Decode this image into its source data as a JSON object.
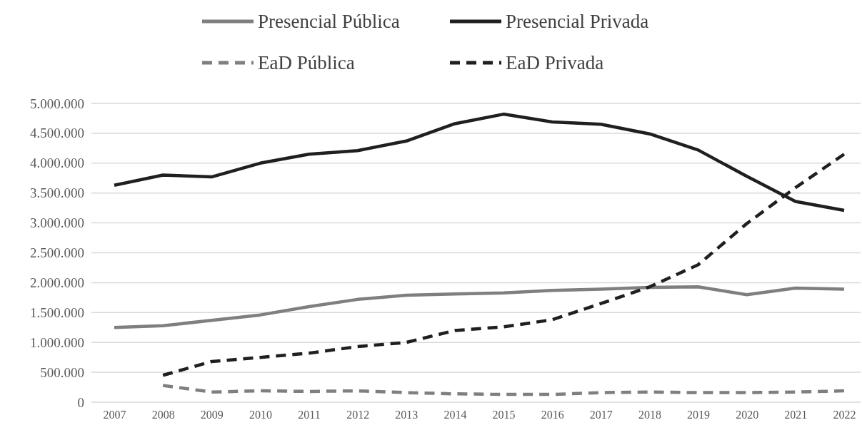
{
  "chart_data": {
    "type": "line",
    "categories": [
      "2007",
      "2008",
      "2009",
      "2010",
      "2011",
      "2012",
      "2013",
      "2014",
      "2015",
      "2016",
      "2017",
      "2018",
      "2019",
      "2020",
      "2021",
      "2022"
    ],
    "series": [
      {
        "name": "Presencial Pública",
        "color": "#7f7f7f",
        "line_style": "solid",
        "values": [
          1250000,
          1280000,
          1370000,
          1460000,
          1600000,
          1720000,
          1790000,
          1810000,
          1830000,
          1870000,
          1890000,
          1920000,
          1930000,
          1800000,
          1910000,
          1890000
        ]
      },
      {
        "name": "Presencial Privada",
        "color": "#1f1f1f",
        "line_style": "solid",
        "values": [
          3630000,
          3800000,
          3770000,
          4000000,
          4150000,
          4210000,
          4370000,
          4660000,
          4820000,
          4690000,
          4650000,
          4490000,
          4220000,
          3780000,
          3360000,
          3210000
        ]
      },
      {
        "name": "EaD Pública",
        "color": "#7f7f7f",
        "line_style": "dashed",
        "values": [
          null,
          280000,
          170000,
          190000,
          180000,
          190000,
          160000,
          140000,
          130000,
          130000,
          160000,
          170000,
          160000,
          160000,
          170000,
          190000
        ]
      },
      {
        "name": "EaD Privada",
        "color": "#1f1f1f",
        "line_style": "dashed",
        "values": [
          null,
          450000,
          680000,
          750000,
          820000,
          930000,
          1000000,
          1200000,
          1260000,
          1380000,
          1650000,
          1930000,
          2300000,
          2990000,
          3590000,
          4150000
        ]
      }
    ],
    "ylim": [
      0,
      5000000
    ],
    "yticks": [
      {
        "value": 0,
        "label": "0"
      },
      {
        "value": 500000,
        "label": "500.000"
      },
      {
        "value": 1000000,
        "label": "1.000.000"
      },
      {
        "value": 1500000,
        "label": "1.500.000"
      },
      {
        "value": 2000000,
        "label": "2.000.000"
      },
      {
        "value": 2500000,
        "label": "2.500.000"
      },
      {
        "value": 3000000,
        "label": "3.000.000"
      },
      {
        "value": 3500000,
        "label": "3.500.000"
      },
      {
        "value": 4000000,
        "label": "4.000.000"
      },
      {
        "value": 4500000,
        "label": "4.500.000"
      },
      {
        "value": 5000000,
        "label": "5.000.000"
      }
    ],
    "grid": "y",
    "legend": "top",
    "marker": "none"
  }
}
